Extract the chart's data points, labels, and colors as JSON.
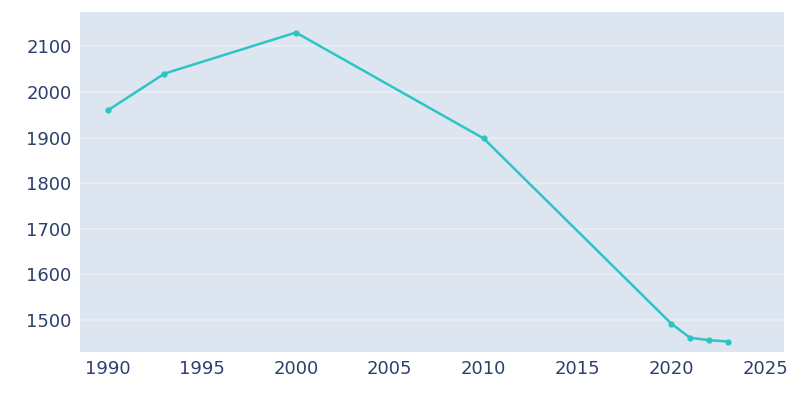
{
  "years": [
    1990,
    1993,
    2000,
    2010,
    2020,
    2021,
    2022,
    2023
  ],
  "population": [
    1960,
    2040,
    2130,
    1898,
    1492,
    1461,
    1456,
    1453
  ],
  "line_color": "#2FC4C4",
  "marker": "o",
  "marker_size": 3.5,
  "line_width": 1.8,
  "plot_bg_color": "#DDE6F0",
  "fig_bg_color": "#FFFFFF",
  "grid_color": "#EAEFF6",
  "xlim": [
    1988.5,
    2026
  ],
  "ylim": [
    1430,
    2175
  ],
  "xticks": [
    1990,
    1995,
    2000,
    2005,
    2010,
    2015,
    2020,
    2025
  ],
  "yticks": [
    1500,
    1600,
    1700,
    1800,
    1900,
    2000,
    2100
  ],
  "tick_color": "#2D3F6B",
  "tick_fontsize": 13
}
